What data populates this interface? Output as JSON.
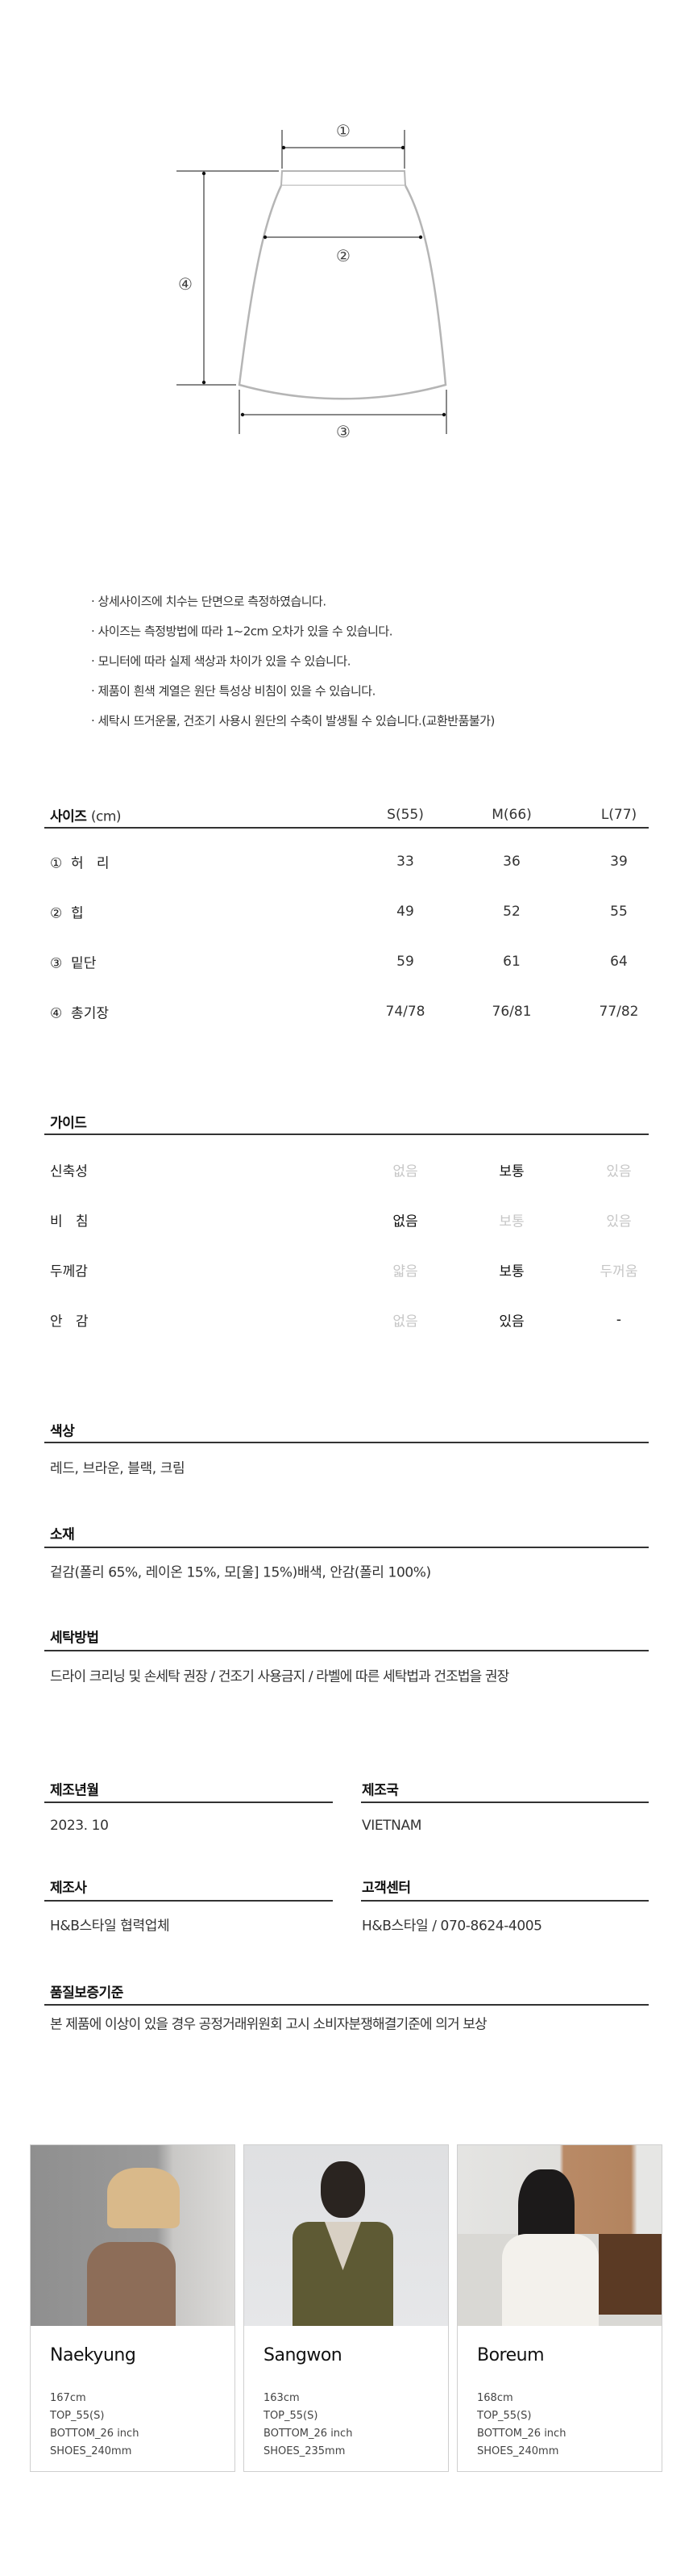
{
  "diagram": {
    "labels": {
      "waist": "①",
      "hip": "②",
      "hem": "③",
      "length": "④"
    }
  },
  "notes": [
    "· 상세사이즈에 치수는 단면으로 측정하였습니다.",
    "· 사이즈는 측정방법에 따라 1~2cm 오차가 있을 수 있습니다.",
    "· 모니터에 따라 실제 색상과 차이가 있을 수 있습니다.",
    "· 제품이 흰색 계열은 원단 특성상 비침이 있을 수 있습니다.",
    "· 세탁시 뜨거운물, 건조기 사용시 원단의 수축이 발생될 수 있습니다.(교환반품불가)"
  ],
  "size_table": {
    "title": "사이즈",
    "unit": "(cm)",
    "columns": [
      "S(55)",
      "M(66)",
      "L(77)"
    ],
    "rows": [
      {
        "label": "①  허   리",
        "values": [
          "33",
          "36",
          "39"
        ]
      },
      {
        "label": "②  힙",
        "values": [
          "49",
          "52",
          "55"
        ]
      },
      {
        "label": "③  밑단",
        "values": [
          "59",
          "61",
          "64"
        ]
      },
      {
        "label": "④  총기장",
        "values": [
          "74/78",
          "76/81",
          "77/82"
        ]
      }
    ]
  },
  "guide": {
    "title": "가이드",
    "rows": [
      {
        "label": "신축성",
        "options": [
          "없음",
          "보통",
          "있음"
        ],
        "selected": 1
      },
      {
        "label": "비   침",
        "options": [
          "없음",
          "보통",
          "있음"
        ],
        "selected": 0
      },
      {
        "label": "두께감",
        "options": [
          "얇음",
          "보통",
          "두꺼움"
        ],
        "selected": 1
      },
      {
        "label": "안   감",
        "options": [
          "없음",
          "있음",
          "-"
        ],
        "selected": 1
      }
    ]
  },
  "color": {
    "title": "색상",
    "value": "레드, 브라운, 블랙, 크림"
  },
  "material": {
    "title": "소재",
    "value": "겉감(폴리 65%, 레이온 15%, 모[울] 15%)배색, 안감(폴리 100%)"
  },
  "washing": {
    "title": "세탁방법",
    "value": "드라이 크리닝 및 손세탁 권장 / 건조기 사용금지 / 라벨에 따른 세탁법과 건조법을 권장"
  },
  "info": {
    "made_date": {
      "title": "제조년월",
      "value": "2023. 10"
    },
    "country": {
      "title": "제조국",
      "value": "VIETNAM"
    },
    "maker": {
      "title": "제조사",
      "value": "H&B스타일 협력업체"
    },
    "cs": {
      "title": "고객센터",
      "value": "H&B스타일 / 070-8624-4005"
    },
    "quality": {
      "title": "품질보증기준",
      "value": "본 제품에 이상이 있을 경우 공정거래위원회 고시 소비자분쟁해결기준에 의거 보상"
    }
  },
  "models": [
    {
      "name": "Naekyung",
      "height": "167cm",
      "top": "TOP_55(S)",
      "bottom": "BOTTOM_26 inch",
      "shoes": "SHOES_240mm"
    },
    {
      "name": "Sangwon",
      "height": "163cm",
      "top": "TOP_55(S)",
      "bottom": "BOTTOM_26 inch",
      "shoes": "SHOES_235mm"
    },
    {
      "name": "Boreum",
      "height": "168cm",
      "top": "TOP_55(S)",
      "bottom": "BOTTOM_26 inch",
      "shoes": "SHOES_240mm"
    }
  ],
  "colors": {
    "text": "#333333",
    "inactive": "#c6c6c6",
    "rule": "#333333",
    "card_border": "#cfcfcf"
  }
}
